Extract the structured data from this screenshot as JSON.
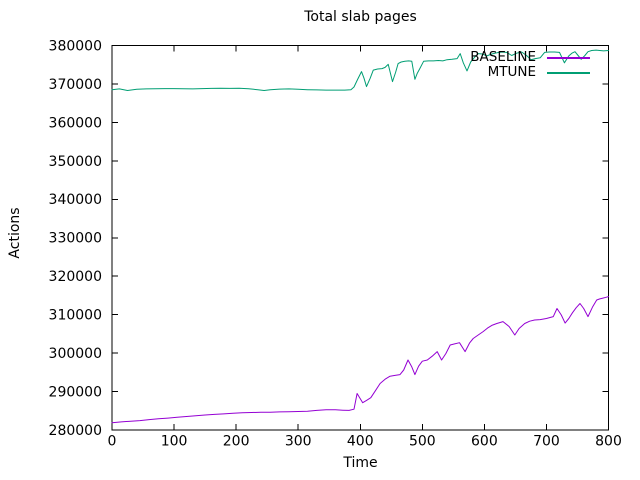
{
  "accent_colors": {
    "baseline": "#9400d3",
    "mtune": "#009e73",
    "axis": "#000000",
    "background": "#ffffff"
  },
  "legend": {
    "items": [
      {
        "label": "BASELINE",
        "color": "#9400d3"
      },
      {
        "label": "MTUNE",
        "color": "#009e73"
      }
    ]
  },
  "chart_data": {
    "type": "line",
    "title": "Total slab pages",
    "xlabel": "Time",
    "ylabel": "Actions",
    "xlim": [
      0,
      800
    ],
    "ylim": [
      280000,
      380000
    ],
    "x_ticks": [
      0,
      100,
      200,
      300,
      400,
      500,
      600,
      700,
      800
    ],
    "y_ticks": [
      280000,
      290000,
      300000,
      310000,
      320000,
      330000,
      340000,
      350000,
      360000,
      370000,
      380000
    ],
    "grid": false,
    "legend_position": "top-right-inside",
    "series": [
      {
        "name": "BASELINE",
        "color": "#9400d3",
        "points": [
          [
            0,
            281900
          ],
          [
            15,
            282100
          ],
          [
            30,
            282300
          ],
          [
            45,
            282450
          ],
          [
            60,
            282700
          ],
          [
            75,
            282900
          ],
          [
            90,
            283100
          ],
          [
            105,
            283300
          ],
          [
            120,
            283500
          ],
          [
            135,
            283700
          ],
          [
            150,
            283900
          ],
          [
            165,
            284050
          ],
          [
            180,
            284200
          ],
          [
            195,
            284350
          ],
          [
            210,
            284500
          ],
          [
            225,
            284550
          ],
          [
            240,
            284600
          ],
          [
            255,
            284600
          ],
          [
            270,
            284700
          ],
          [
            285,
            284750
          ],
          [
            300,
            284800
          ],
          [
            315,
            284900
          ],
          [
            330,
            285100
          ],
          [
            345,
            285250
          ],
          [
            360,
            285250
          ],
          [
            372,
            285150
          ],
          [
            382,
            285100
          ],
          [
            390,
            285400
          ],
          [
            395,
            289500
          ],
          [
            404,
            287100
          ],
          [
            410,
            287700
          ],
          [
            417,
            288400
          ],
          [
            424,
            290100
          ],
          [
            432,
            292100
          ],
          [
            440,
            293200
          ],
          [
            448,
            294000
          ],
          [
            456,
            294200
          ],
          [
            464,
            294400
          ],
          [
            470,
            295600
          ],
          [
            477,
            298200
          ],
          [
            483,
            296400
          ],
          [
            488,
            294400
          ],
          [
            494,
            296600
          ],
          [
            500,
            297900
          ],
          [
            508,
            298200
          ],
          [
            516,
            299200
          ],
          [
            524,
            300400
          ],
          [
            531,
            298200
          ],
          [
            538,
            299900
          ],
          [
            545,
            302100
          ],
          [
            552,
            302400
          ],
          [
            560,
            302700
          ],
          [
            569,
            300400
          ],
          [
            576,
            302600
          ],
          [
            582,
            303800
          ],
          [
            590,
            304700
          ],
          [
            598,
            305600
          ],
          [
            605,
            306500
          ],
          [
            612,
            307200
          ],
          [
            620,
            307700
          ],
          [
            630,
            308200
          ],
          [
            640,
            306900
          ],
          [
            649,
            304700
          ],
          [
            656,
            306400
          ],
          [
            665,
            307700
          ],
          [
            673,
            308300
          ],
          [
            681,
            308600
          ],
          [
            690,
            308700
          ],
          [
            700,
            309000
          ],
          [
            711,
            309500
          ],
          [
            717,
            311600
          ],
          [
            724,
            309900
          ],
          [
            730,
            307800
          ],
          [
            736,
            309000
          ],
          [
            742,
            310500
          ],
          [
            748,
            311800
          ],
          [
            754,
            312900
          ],
          [
            760,
            311600
          ],
          [
            767,
            309500
          ],
          [
            774,
            311900
          ],
          [
            781,
            313800
          ],
          [
            786,
            314100
          ],
          [
            791,
            314300
          ],
          [
            796,
            314500
          ],
          [
            800,
            314700
          ]
        ]
      },
      {
        "name": "MTUNE",
        "color": "#009e73",
        "points": [
          [
            0,
            368500
          ],
          [
            12,
            368700
          ],
          [
            25,
            368300
          ],
          [
            40,
            368600
          ],
          [
            55,
            368700
          ],
          [
            70,
            368750
          ],
          [
            85,
            368800
          ],
          [
            100,
            368800
          ],
          [
            115,
            368750
          ],
          [
            130,
            368700
          ],
          [
            145,
            368800
          ],
          [
            160,
            368850
          ],
          [
            175,
            368900
          ],
          [
            190,
            368850
          ],
          [
            205,
            368900
          ],
          [
            220,
            368750
          ],
          [
            235,
            368500
          ],
          [
            245,
            368300
          ],
          [
            255,
            368500
          ],
          [
            270,
            368650
          ],
          [
            285,
            368700
          ],
          [
            300,
            368600
          ],
          [
            315,
            368500
          ],
          [
            330,
            368450
          ],
          [
            345,
            368400
          ],
          [
            360,
            368400
          ],
          [
            375,
            368400
          ],
          [
            385,
            368500
          ],
          [
            390,
            369200
          ],
          [
            396,
            371300
          ],
          [
            402,
            373200
          ],
          [
            406,
            371500
          ],
          [
            410,
            369300
          ],
          [
            416,
            371500
          ],
          [
            421,
            373600
          ],
          [
            428,
            373900
          ],
          [
            435,
            374000
          ],
          [
            440,
            374300
          ],
          [
            445,
            375100
          ],
          [
            452,
            370600
          ],
          [
            457,
            373000
          ],
          [
            461,
            375300
          ],
          [
            466,
            375700
          ],
          [
            472,
            375900
          ],
          [
            478,
            376000
          ],
          [
            483,
            375900
          ],
          [
            488,
            371200
          ],
          [
            492,
            372800
          ],
          [
            496,
            374000
          ],
          [
            502,
            375900
          ],
          [
            510,
            376000
          ],
          [
            518,
            376000
          ],
          [
            526,
            376100
          ],
          [
            533,
            376000
          ],
          [
            540,
            376300
          ],
          [
            548,
            376400
          ],
          [
            556,
            376600
          ],
          [
            561,
            377900
          ],
          [
            566,
            375500
          ],
          [
            572,
            373400
          ],
          [
            578,
            375700
          ],
          [
            584,
            376900
          ],
          [
            590,
            377900
          ],
          [
            597,
            377800
          ],
          [
            604,
            377300
          ],
          [
            612,
            377800
          ],
          [
            620,
            378100
          ],
          [
            628,
            378300
          ],
          [
            636,
            378200
          ],
          [
            644,
            377400
          ],
          [
            652,
            378000
          ],
          [
            660,
            378300
          ],
          [
            668,
            377400
          ],
          [
            675,
            376300
          ],
          [
            682,
            376600
          ],
          [
            690,
            376800
          ],
          [
            697,
            378200
          ],
          [
            705,
            378300
          ],
          [
            713,
            378300
          ],
          [
            721,
            378200
          ],
          [
            729,
            375500
          ],
          [
            736,
            377300
          ],
          [
            741,
            378000
          ],
          [
            746,
            378400
          ],
          [
            751,
            377400
          ],
          [
            756,
            376400
          ],
          [
            762,
            377400
          ],
          [
            767,
            378400
          ],
          [
            773,
            378700
          ],
          [
            780,
            378800
          ],
          [
            786,
            378700
          ],
          [
            792,
            378600
          ],
          [
            800,
            378700
          ]
        ]
      }
    ]
  }
}
